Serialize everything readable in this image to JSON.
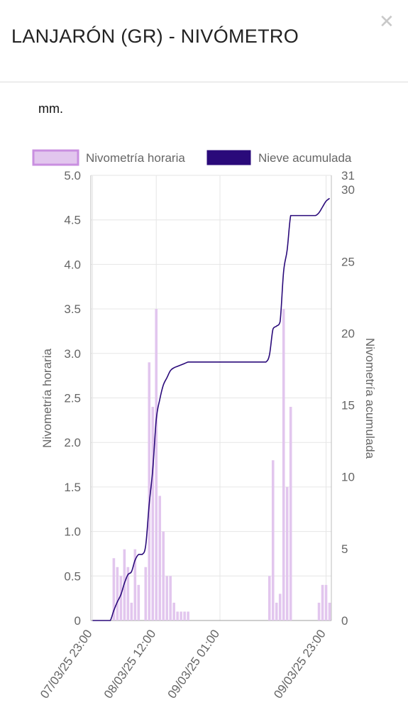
{
  "header": {
    "title": "LANJARÓN (GR) - NIVÓMETRO",
    "close_icon": "close-icon"
  },
  "unit_label": "mm.",
  "colors": {
    "bar_fill": "#e2c6ee",
    "bar_border": "#c98fe0",
    "line": "#2a0a7a",
    "grid": "#e6e6e6",
    "text": "#666666"
  },
  "chart_data": {
    "type": "bar",
    "legend_position": "top",
    "grid": true,
    "series": [
      {
        "name": "Nivometría horaria",
        "type": "bar",
        "axis": "left",
        "values": [
          0,
          0,
          0,
          0,
          0,
          0,
          0.7,
          0.6,
          0.5,
          0.8,
          0.6,
          0.2,
          0.8,
          0.4,
          0,
          0.6,
          2.9,
          2.4,
          3.5,
          1.4,
          1.0,
          0.5,
          0.5,
          0.2,
          0.1,
          0.1,
          0.1,
          0.1,
          0,
          0,
          0,
          0,
          0,
          0,
          0,
          0,
          0,
          0,
          0,
          0,
          0,
          0,
          0,
          0,
          0,
          0,
          0,
          0,
          0,
          0,
          0.5,
          1.8,
          0.2,
          0.3,
          3.5,
          1.5,
          2.4,
          0,
          0,
          0,
          0,
          0,
          0,
          0,
          0.2,
          0.4,
          0.4,
          0.2
        ]
      },
      {
        "name": "Nieve acumulada",
        "type": "line",
        "axis": "right",
        "values": [
          0,
          0,
          0,
          0,
          0,
          0,
          0.7,
          1.3,
          1.8,
          2.6,
          3.2,
          3.4,
          4.2,
          4.6,
          4.6,
          5.2,
          8.1,
          10.5,
          14.0,
          15.4,
          16.4,
          16.9,
          17.4,
          17.6,
          17.7,
          17.8,
          17.9,
          18.0,
          18.0,
          18.0,
          18.0,
          18.0,
          18.0,
          18.0,
          18.0,
          18.0,
          18.0,
          18.0,
          18.0,
          18.0,
          18.0,
          18.0,
          18.0,
          18.0,
          18.0,
          18.0,
          18.0,
          18.0,
          18.0,
          18.0,
          18.5,
          20.3,
          20.5,
          20.8,
          24.3,
          25.8,
          28.2,
          28.2,
          28.2,
          28.2,
          28.2,
          28.2,
          28.2,
          28.2,
          28.4,
          28.8,
          29.2,
          29.4
        ]
      }
    ],
    "x_tick_labels": [
      "07/03/25 23:00",
      "08/03/25 12:00",
      "09/03/25 01:00",
      "09/03/25 23:00"
    ],
    "x_tick_index": [
      0,
      18,
      36,
      66
    ],
    "y_left": {
      "label": "Nivometría horaria",
      "range": [
        0,
        5
      ],
      "ticks": [
        "0",
        "0.5",
        "1.0",
        "1.5",
        "2.0",
        "2.5",
        "3.0",
        "3.5",
        "4.0",
        "4.5",
        "5.0"
      ]
    },
    "y_right": {
      "label": "Nivometría acumulada",
      "range": [
        0,
        31
      ],
      "ticks": [
        "0",
        "5",
        "10",
        "15",
        "20",
        "25",
        "30",
        "31"
      ],
      "tick_values": [
        0,
        5,
        10,
        15,
        20,
        25,
        30,
        31
      ]
    }
  }
}
